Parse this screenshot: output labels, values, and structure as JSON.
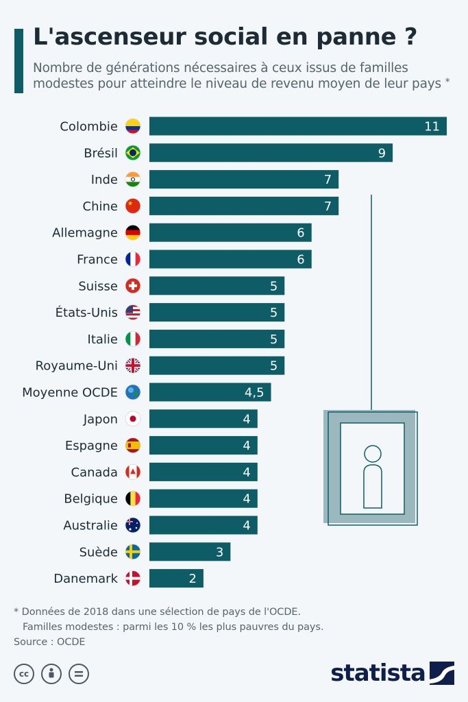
{
  "header": {
    "title": "L'ascenseur social en panne ?",
    "subtitle": "Nombre de générations nécessaires à ceux issus de familles modestes pour atteindre le niveau de revenu moyen de leur pays",
    "subtitle_mark": "*"
  },
  "chart_data": {
    "type": "bar",
    "orientation": "horizontal",
    "title": "L'ascenseur social en panne ?",
    "xlabel": "",
    "ylabel": "",
    "xlim": [
      0,
      11
    ],
    "grid": false,
    "bar_color": "#0e5c66",
    "categories": [
      "Colombie",
      "Brésil",
      "Inde",
      "Chine",
      "Allemagne",
      "France",
      "Suisse",
      "États-Unis",
      "Italie",
      "Royaume-Uni",
      "Moyenne OCDE",
      "Japon",
      "Espagne",
      "Canada",
      "Belgique",
      "Australie",
      "Suède",
      "Danemark"
    ],
    "values": [
      11,
      9,
      7,
      7,
      6,
      6,
      5,
      5,
      5,
      5,
      4.5,
      4,
      4,
      4,
      4,
      4,
      3,
      2
    ],
    "value_labels": [
      "11",
      "9",
      "7",
      "7",
      "6",
      "6",
      "5",
      "5",
      "5",
      "5",
      "4,5",
      "4",
      "4",
      "4",
      "4",
      "4",
      "3",
      "2"
    ],
    "flag_icons": [
      "colombia-flag-icon",
      "brazil-flag-icon",
      "india-flag-icon",
      "china-flag-icon",
      "germany-flag-icon",
      "france-flag-icon",
      "switzerland-flag-icon",
      "usa-flag-icon",
      "italy-flag-icon",
      "uk-flag-icon",
      "oecd-logo-icon",
      "japan-flag-icon",
      "spain-flag-icon",
      "canada-flag-icon",
      "belgium-flag-icon",
      "australia-flag-icon",
      "sweden-flag-icon",
      "denmark-flag-icon"
    ]
  },
  "illustration": {
    "icon": "elevator-person-icon",
    "color": "#9bb8bf"
  },
  "footer": {
    "note_line1": "* Données de 2018 dans une sélection de pays de l'OCDE.",
    "note_line2": "Familles modestes : parmi les 10 % les plus pauvres du pays.",
    "source": "Source : OCDE",
    "license_icons": [
      "creative-commons-icon",
      "attribution-icon",
      "no-derivatives-icon"
    ],
    "brand": "statista"
  }
}
